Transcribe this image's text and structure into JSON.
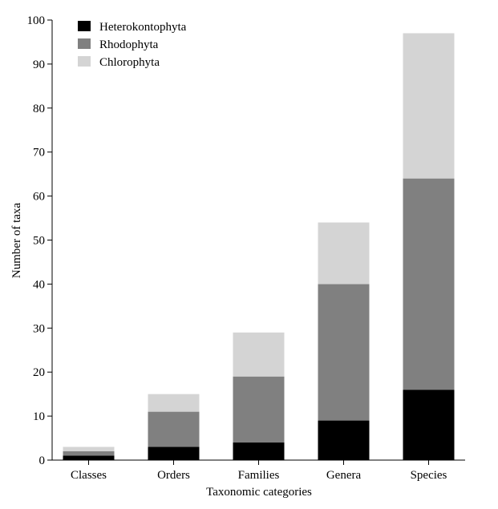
{
  "chart_data": {
    "type": "bar",
    "stacked": true,
    "title": "",
    "xlabel": "Taxonomic categories",
    "ylabel": "Number of taxa",
    "ylim": [
      0,
      100
    ],
    "yticks": [
      0,
      10,
      20,
      30,
      40,
      50,
      60,
      70,
      80,
      90,
      100
    ],
    "categories": [
      "Classes",
      "Orders",
      "Families",
      "Genera",
      "Species"
    ],
    "series": [
      {
        "name": "Heterokontophyta",
        "color": "#000000",
        "values": [
          1,
          3,
          4,
          9,
          16
        ]
      },
      {
        "name": "Rhodophyta",
        "color": "#808080",
        "values": [
          1,
          8,
          15,
          31,
          48
        ]
      },
      {
        "name": "Chlorophyta",
        "color": "#d4d4d4",
        "values": [
          1,
          4,
          10,
          14,
          33
        ]
      }
    ],
    "cumulative_totals": [
      3,
      15,
      29,
      54,
      97
    ],
    "grid": false,
    "legend_position": "top-left"
  }
}
